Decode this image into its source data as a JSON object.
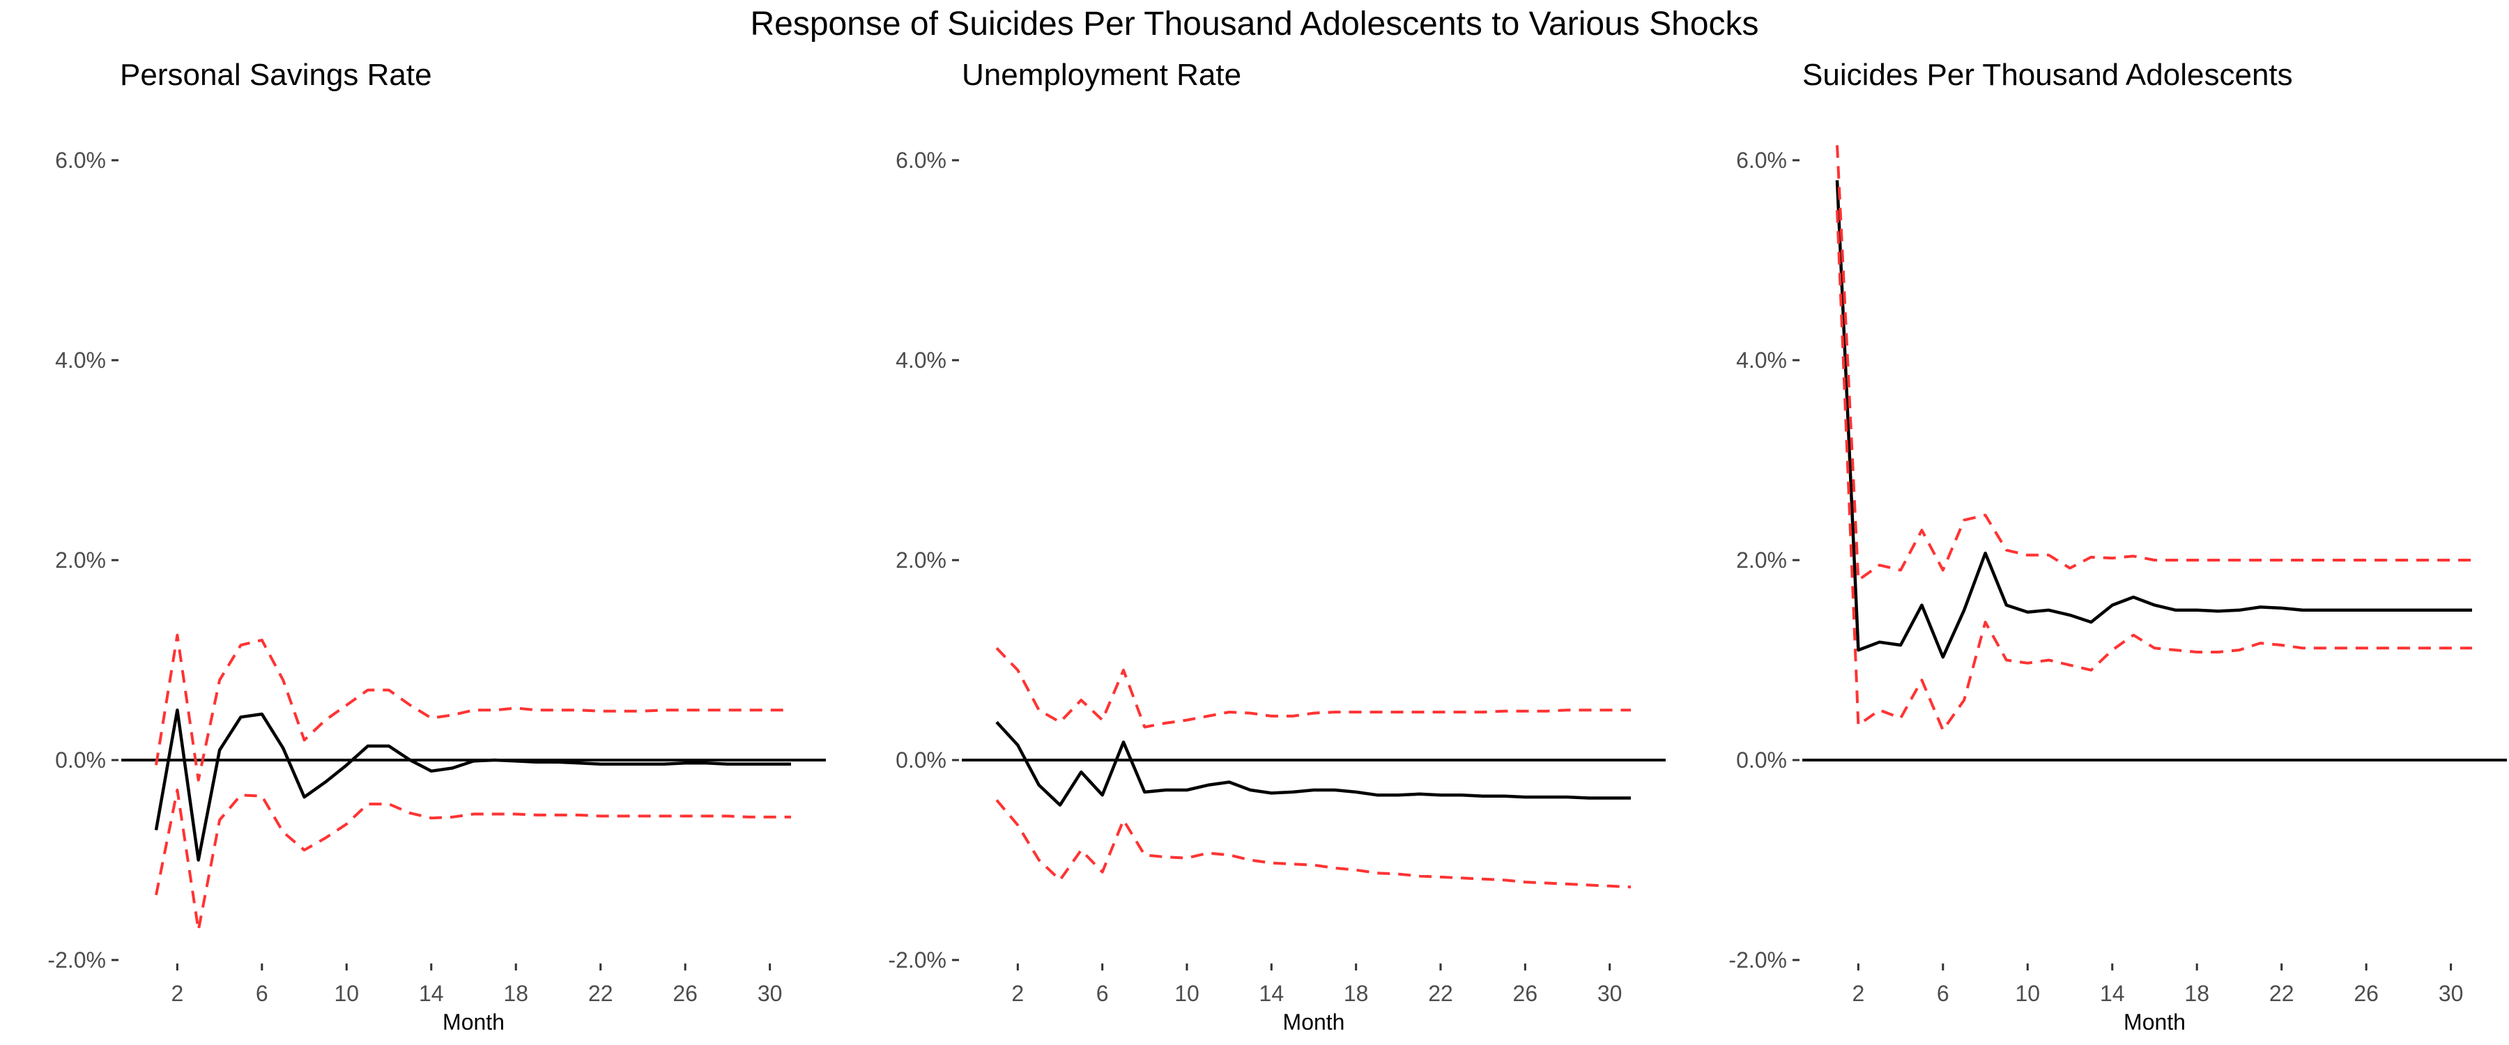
{
  "chart_data": {
    "type": "line",
    "title": "Response of Suicides Per Thousand Adolescents to Various Shocks",
    "panels": [
      {
        "title": "Personal Savings Rate",
        "xlabel": "Month",
        "x_ticks": [
          2,
          6,
          10,
          14,
          18,
          22,
          26,
          30
        ],
        "y_ticks": [
          -2,
          0,
          2,
          4,
          6
        ],
        "y_tick_labels": [
          "-2.0%",
          "0.0%",
          "2.0%",
          "4.0%",
          "6.0%"
        ],
        "ylim": [
          -2,
          6
        ],
        "xlim": [
          1,
          31
        ],
        "x": [
          1,
          2,
          3,
          4,
          5,
          6,
          7,
          8,
          9,
          10,
          11,
          12,
          13,
          14,
          15,
          16,
          17,
          18,
          19,
          20,
          21,
          22,
          23,
          24,
          25,
          26,
          27,
          28,
          29,
          30,
          31
        ],
        "series": [
          {
            "role": "response",
            "color": "#000000",
            "dash": "solid",
            "values": [
              -0.7,
              0.5,
              -1.0,
              0.1,
              0.43,
              0.46,
              0.12,
              -0.37,
              -0.22,
              -0.05,
              0.14,
              0.14,
              0.0,
              -0.11,
              -0.08,
              -0.01,
              0.0,
              -0.01,
              -0.02,
              -0.02,
              -0.03,
              -0.04,
              -0.04,
              -0.04,
              -0.04,
              -0.03,
              -0.03,
              -0.04,
              -0.04,
              -0.04,
              -0.04
            ]
          },
          {
            "role": "upper-band",
            "color": "#ff3333",
            "dash": "dashed",
            "values": [
              -0.05,
              1.25,
              -0.2,
              0.8,
              1.15,
              1.2,
              0.8,
              0.2,
              0.4,
              0.55,
              0.7,
              0.7,
              0.55,
              0.42,
              0.45,
              0.5,
              0.5,
              0.52,
              0.5,
              0.5,
              0.5,
              0.49,
              0.49,
              0.49,
              0.5,
              0.5,
              0.5,
              0.5,
              0.5,
              0.5,
              0.5
            ]
          },
          {
            "role": "lower-band",
            "color": "#ff3333",
            "dash": "dashed",
            "values": [
              -1.35,
              -0.3,
              -1.7,
              -0.6,
              -0.35,
              -0.36,
              -0.72,
              -0.9,
              -0.78,
              -0.64,
              -0.44,
              -0.44,
              -0.53,
              -0.58,
              -0.57,
              -0.54,
              -0.54,
              -0.54,
              -0.55,
              -0.55,
              -0.55,
              -0.56,
              -0.56,
              -0.56,
              -0.56,
              -0.56,
              -0.56,
              -0.56,
              -0.57,
              -0.57,
              -0.57
            ]
          }
        ]
      },
      {
        "title": "Unemployment Rate",
        "xlabel": "Month",
        "x_ticks": [
          2,
          6,
          10,
          14,
          18,
          22,
          26,
          30
        ],
        "y_ticks": [
          -2,
          0,
          2,
          4,
          6
        ],
        "y_tick_labels": [
          "-2.0%",
          "0.0%",
          "2.0%",
          "4.0%",
          "6.0%"
        ],
        "ylim": [
          -2,
          6
        ],
        "xlim": [
          1,
          31
        ],
        "x": [
          1,
          2,
          3,
          4,
          5,
          6,
          7,
          8,
          9,
          10,
          11,
          12,
          13,
          14,
          15,
          16,
          17,
          18,
          19,
          20,
          21,
          22,
          23,
          24,
          25,
          26,
          27,
          28,
          29,
          30,
          31
        ],
        "series": [
          {
            "role": "response",
            "color": "#000000",
            "dash": "solid",
            "values": [
              0.38,
              0.15,
              -0.25,
              -0.45,
              -0.12,
              -0.35,
              0.18,
              -0.32,
              -0.3,
              -0.3,
              -0.25,
              -0.22,
              -0.3,
              -0.33,
              -0.32,
              -0.3,
              -0.3,
              -0.32,
              -0.35,
              -0.35,
              -0.34,
              -0.35,
              -0.35,
              -0.36,
              -0.36,
              -0.37,
              -0.37,
              -0.37,
              -0.38,
              -0.38,
              -0.38
            ]
          },
          {
            "role": "upper-band",
            "color": "#ff3333",
            "dash": "dashed",
            "values": [
              1.12,
              0.9,
              0.5,
              0.38,
              0.6,
              0.4,
              0.9,
              0.33,
              0.37,
              0.4,
              0.44,
              0.48,
              0.47,
              0.44,
              0.44,
              0.47,
              0.48,
              0.48,
              0.48,
              0.48,
              0.48,
              0.48,
              0.48,
              0.48,
              0.49,
              0.49,
              0.49,
              0.5,
              0.5,
              0.5,
              0.5
            ]
          },
          {
            "role": "lower-band",
            "color": "#ff3333",
            "dash": "dashed",
            "values": [
              -0.4,
              -0.65,
              -1.0,
              -1.2,
              -0.9,
              -1.12,
              -0.6,
              -0.95,
              -0.97,
              -0.98,
              -0.93,
              -0.95,
              -1.0,
              -1.03,
              -1.04,
              -1.05,
              -1.08,
              -1.1,
              -1.13,
              -1.14,
              -1.16,
              -1.17,
              -1.18,
              -1.19,
              -1.2,
              -1.22,
              -1.23,
              -1.24,
              -1.25,
              -1.26,
              -1.27
            ]
          }
        ]
      },
      {
        "title": "Suicides Per Thousand Adolescents",
        "xlabel": "Month",
        "x_ticks": [
          2,
          6,
          10,
          14,
          18,
          22,
          26,
          30
        ],
        "y_ticks": [
          -2,
          0,
          2,
          4,
          6
        ],
        "y_tick_labels": [
          "-2.0%",
          "0.0%",
          "2.0%",
          "4.0%",
          "6.0%"
        ],
        "ylim": [
          -2,
          6
        ],
        "xlim": [
          1,
          31
        ],
        "x": [
          1,
          2,
          3,
          4,
          5,
          6,
          7,
          8,
          9,
          10,
          11,
          12,
          13,
          14,
          15,
          16,
          17,
          18,
          19,
          20,
          21,
          22,
          23,
          24,
          25,
          26,
          27,
          28,
          29,
          30,
          31
        ],
        "series": [
          {
            "role": "response",
            "color": "#000000",
            "dash": "solid",
            "values": [
              5.8,
              1.1,
              1.18,
              1.15,
              1.55,
              1.03,
              1.5,
              2.07,
              1.55,
              1.48,
              1.5,
              1.45,
              1.38,
              1.55,
              1.63,
              1.55,
              1.5,
              1.5,
              1.49,
              1.5,
              1.53,
              1.52,
              1.5,
              1.5,
              1.5,
              1.5,
              1.5,
              1.5,
              1.5,
              1.5,
              1.5
            ]
          },
          {
            "role": "upper-band",
            "color": "#ff3333",
            "dash": "dashed",
            "values": [
              6.15,
              1.8,
              1.95,
              1.9,
              2.3,
              1.9,
              2.4,
              2.45,
              2.1,
              2.05,
              2.05,
              1.92,
              2.03,
              2.02,
              2.04,
              2.0,
              2.0,
              2.0,
              2.0,
              2.0,
              2.0,
              2.0,
              2.0,
              2.0,
              2.0,
              2.0,
              2.0,
              2.0,
              2.0,
              2.0,
              2.0
            ]
          },
          {
            "role": "lower-band",
            "color": "#ff3333",
            "dash": "dashed",
            "values": [
              5.5,
              0.35,
              0.5,
              0.42,
              0.8,
              0.3,
              0.6,
              1.38,
              1.0,
              0.97,
              1.0,
              0.95,
              0.9,
              1.1,
              1.25,
              1.12,
              1.1,
              1.08,
              1.08,
              1.1,
              1.17,
              1.15,
              1.12,
              1.12,
              1.12,
              1.12,
              1.12,
              1.12,
              1.12,
              1.12,
              1.12
            ]
          }
        ]
      }
    ]
  }
}
